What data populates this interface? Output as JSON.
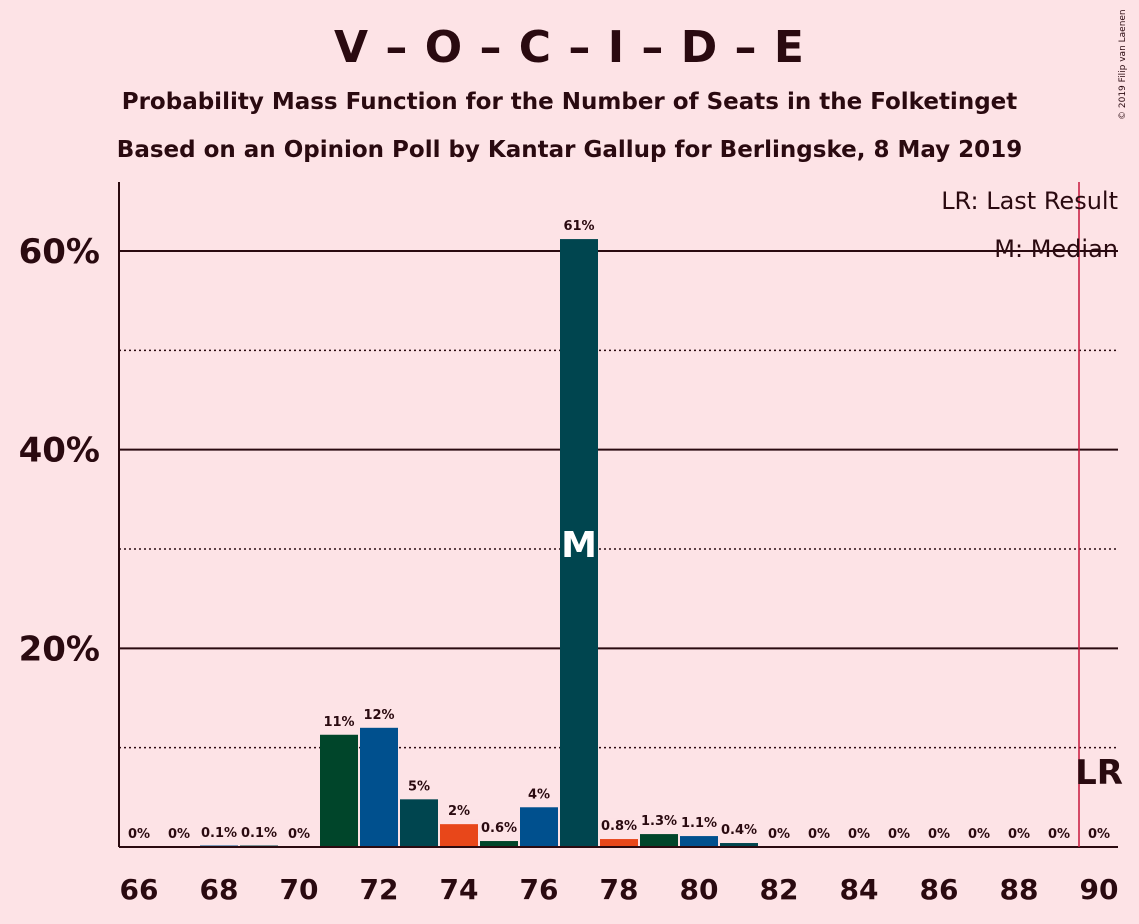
{
  "title": "V – O – C – I – D – E",
  "subtitle1": "Probability Mass Function for the Number of Seats in the Folketinget",
  "subtitle2": "Based on an Opinion Poll by Kantar Gallup for Berlingske, 8 May 2019",
  "copyright": "© 2019 Filip van Laenen",
  "legend": {
    "lr": "LR: Last Result",
    "m": "M: Median"
  },
  "marker_lr": "LR",
  "marker_m": "M",
  "colors": {
    "background": "#FDE3E6",
    "dark_green": "#00452A",
    "blue": "#00508E",
    "teal": "#00454F",
    "orange": "#E8471A",
    "last_result_line": "#C8183D"
  },
  "chart_data": {
    "type": "bar",
    "x": [
      66,
      67,
      68,
      69,
      70,
      71,
      72,
      73,
      74,
      75,
      76,
      77,
      78,
      79,
      80,
      81,
      82,
      83,
      84,
      85,
      86,
      87,
      88,
      89,
      90
    ],
    "values": [
      0,
      0,
      0.1,
      0.1,
      0,
      11.3,
      12,
      4.8,
      2.3,
      0.6,
      4,
      61.2,
      0.8,
      1.3,
      1.1,
      0.4,
      0,
      0,
      0,
      0,
      0,
      0,
      0,
      0,
      0
    ],
    "labels": [
      "0%",
      "0%",
      "0.1%",
      "0.1%",
      "0%",
      "11%",
      "12%",
      "5%",
      "2%",
      "0.6%",
      "4%",
      "61%",
      "0.8%",
      "1.3%",
      "1.1%",
      "0.4%",
      "0%",
      "0%",
      "0%",
      "0%",
      "0%",
      "0%",
      "0%",
      "0%",
      "0%"
    ],
    "bar_colors": [
      "dark_green",
      "blue",
      "teal",
      "orange"
    ],
    "xticks": [
      66,
      68,
      70,
      72,
      74,
      76,
      78,
      80,
      82,
      84,
      86,
      88,
      90
    ],
    "yticks": [
      "20%",
      "40%",
      "60%"
    ],
    "ylim": [
      0,
      67
    ],
    "median": 77,
    "last_result": 89.5,
    "grid": "solid at 20/40/60, dotted at 10/30/50"
  }
}
